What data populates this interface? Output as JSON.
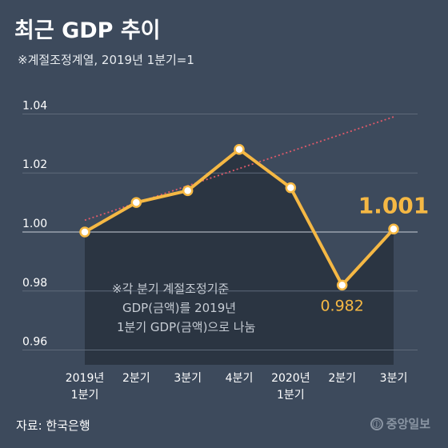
{
  "header": {
    "title": "최근 GDP 추이",
    "subtitle": "※계절조정계열, 2019년 1분기=1"
  },
  "footer": {
    "source": "자료: 한국은행",
    "logo_text": "중앙일보"
  },
  "colors": {
    "background": "#3d4a5c",
    "area_fill": "#2b3542",
    "line": "#f5b844",
    "trend": "#e05a6a",
    "grid": "#5e6a7a"
  },
  "chart_data": {
    "type": "line",
    "categories": [
      [
        "2019년",
        "1분기"
      ],
      [
        "2분기"
      ],
      [
        "3분기"
      ],
      [
        "4분기"
      ],
      [
        "2020년",
        "1분기"
      ],
      [
        "2분기"
      ],
      [
        "3분기"
      ]
    ],
    "values": [
      1.0,
      1.01,
      1.014,
      1.028,
      1.015,
      0.982,
      1.001
    ],
    "trend": [
      1.004,
      1.039
    ],
    "y_ticks": [
      "1.04",
      "1.02",
      "1.00",
      "0.98",
      "0.96"
    ],
    "ylim": [
      0.955,
      1.045
    ],
    "data_labels": [
      {
        "index": 6,
        "text": "1.001",
        "style": "big"
      },
      {
        "index": 5,
        "text": "0.982",
        "style": "small"
      }
    ],
    "annotation": [
      "※각 분기 계절조정기준",
      "GDP(금액)를 2019년",
      "1분기 GDP(금액)으로 나눔"
    ],
    "grid": true,
    "trend_line": "dotted"
  }
}
